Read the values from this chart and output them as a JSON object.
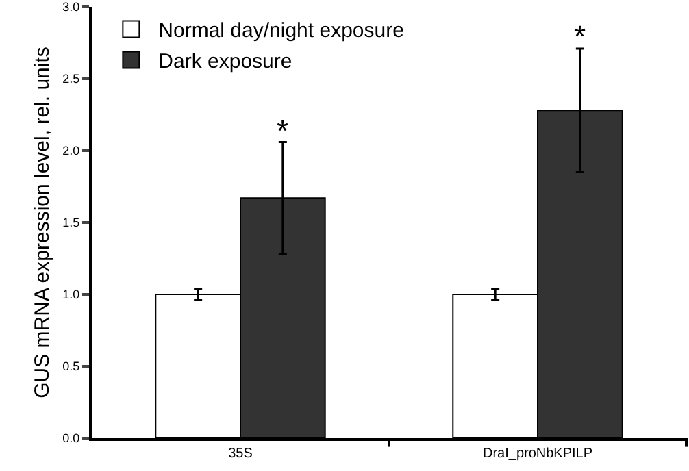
{
  "chart_data": {
    "type": "bar",
    "ylabel": "GUS mRNA expression level, rel. units",
    "categories": [
      "35S",
      "DraI_proNbKPILP"
    ],
    "series": [
      {
        "name": "Normal day/night exposure",
        "color": "#ffffff",
        "values": [
          1.0,
          1.0
        ],
        "errors": [
          0.04,
          0.04
        ]
      },
      {
        "name": "Dark exposure",
        "color": "#333333",
        "values": [
          1.67,
          2.28
        ],
        "errors": [
          0.39,
          0.43
        ]
      }
    ],
    "ylim": [
      0,
      3
    ],
    "yticks": [
      {
        "value": 0,
        "label": "0.0"
      },
      {
        "value": 0.5,
        "label": "0.5"
      },
      {
        "value": 1,
        "label": "1.0"
      },
      {
        "value": 1.5,
        "label": "1.5"
      },
      {
        "value": 2,
        "label": "2.0"
      },
      {
        "value": 2.5,
        "label": "2.5"
      },
      {
        "value": 3,
        "label": "3.0"
      }
    ],
    "annotations": [
      "*",
      "*"
    ],
    "grid": false,
    "legend": "top left"
  }
}
